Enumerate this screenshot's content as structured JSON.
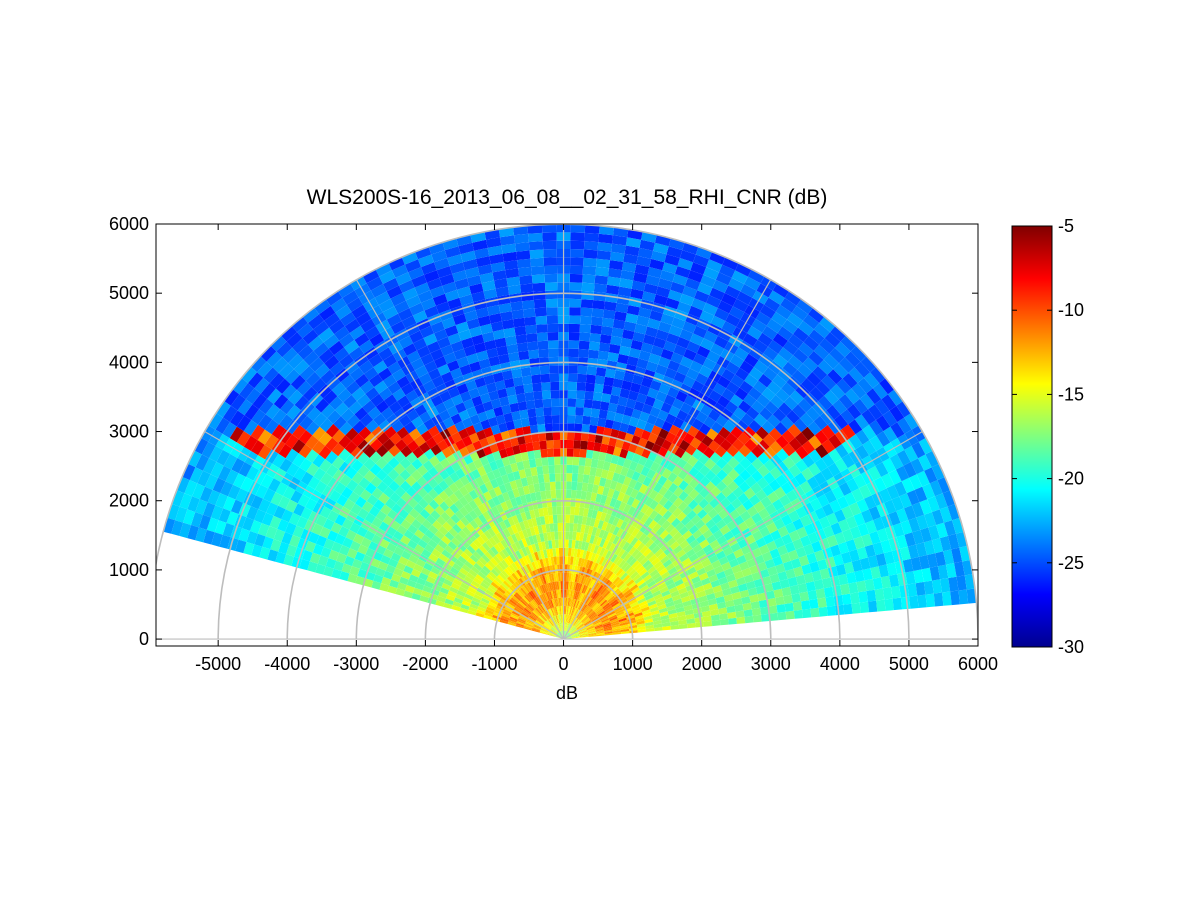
{
  "chart_data": {
    "type": "heatmap",
    "subtype": "polar RHI sector (range-height)",
    "title": "WLS200S-16_2013_06_08__02_31_58_RHI_CNR (dB)",
    "xlabel": "dB",
    "ylabel": "",
    "xlim": [
      -5900,
      6000
    ],
    "ylim": [
      -100,
      6000
    ],
    "xticks": [
      -5000,
      -4000,
      -3000,
      -2000,
      -1000,
      0,
      1000,
      2000,
      3000,
      4000,
      5000,
      6000
    ],
    "yticks": [
      0,
      1000,
      2000,
      3000,
      4000,
      5000,
      6000
    ],
    "grid": {
      "range_rings": [
        1000,
        2000,
        3000,
        4000,
        5000,
        6000
      ],
      "spoke_angles_deg": [
        0,
        30,
        60,
        90,
        120,
        150,
        180
      ],
      "color": "#bdbdbd"
    },
    "scan_elevation_deg": [
      5,
      165
    ],
    "max_range": 6000,
    "colorbar": {
      "colormap": "jet",
      "clim": [
        -30,
        -5
      ],
      "ticks": [
        -30,
        -25,
        -20,
        -15,
        -10,
        -5
      ]
    },
    "features": [
      {
        "name": "near-range maximum",
        "range": [
          500,
          1000
        ],
        "value_db": -11
      },
      {
        "name": "cloud-base layer",
        "height": [
          2700,
          3000
        ],
        "value_db": -6
      },
      {
        "name": "free-troposphere background",
        "range": [
          3500,
          6000
        ],
        "value_db": -26
      }
    ]
  }
}
